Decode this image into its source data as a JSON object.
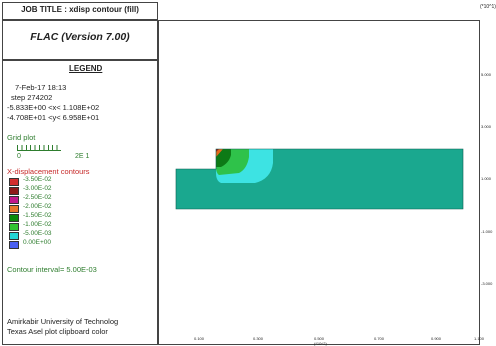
{
  "header": {
    "job_title": "JOB TITLE : xdisp contour (fill)",
    "app_name": "FLAC (Version 7.00)",
    "y_scale": "(*10^1)"
  },
  "legend": {
    "title": "LEGEND",
    "date": "7-Feb-17  18:13",
    "step": "step   274202",
    "xrange": "-5.833E+00 <x<  1.108E+02",
    "yrange": "-4.708E+01 <y<  6.958E+01",
    "grid_plot": "Grid plot",
    "scale_left": "0",
    "scale_right": "2E 1",
    "contours_title": "X-displacement contours",
    "contour_interval": "Contour interval=  5.00E-03",
    "items": [
      {
        "label": "-3.50E-02",
        "color": "#d32f2f"
      },
      {
        "label": "-3.00E-02",
        "color": "#8e1a1a"
      },
      {
        "label": "-2.50E-02",
        "color": "#c2188b"
      },
      {
        "label": "-2.00E-02",
        "color": "#e8772a"
      },
      {
        "label": "-1.50E-02",
        "color": "#0b8a0b"
      },
      {
        "label": "-1.00E-02",
        "color": "#33c433"
      },
      {
        "label": "-5.00E-03",
        "color": "#24d6d6"
      },
      {
        "label": "0.00E+00",
        "color": "#4a5ff0"
      }
    ]
  },
  "footer": {
    "line1": "Amirkabir University of Technolog",
    "line2": "Texas Asel plot clipboard color"
  },
  "axes": {
    "x_ticks": [
      "0.100",
      "0.300",
      "0.500",
      "0.700",
      "0.900",
      "1.100"
    ],
    "x_label": "(*10^2)",
    "y_ticks": [
      "5.000",
      "3.000",
      "1.000",
      "-1.000",
      "-3.000"
    ]
  },
  "model": {
    "base_color": "#1aa88f",
    "light_color": "#3de3e3",
    "mid_color": "#2fc24a",
    "dark_color": "#0d7a16",
    "hot_color": "#e46a1e"
  }
}
